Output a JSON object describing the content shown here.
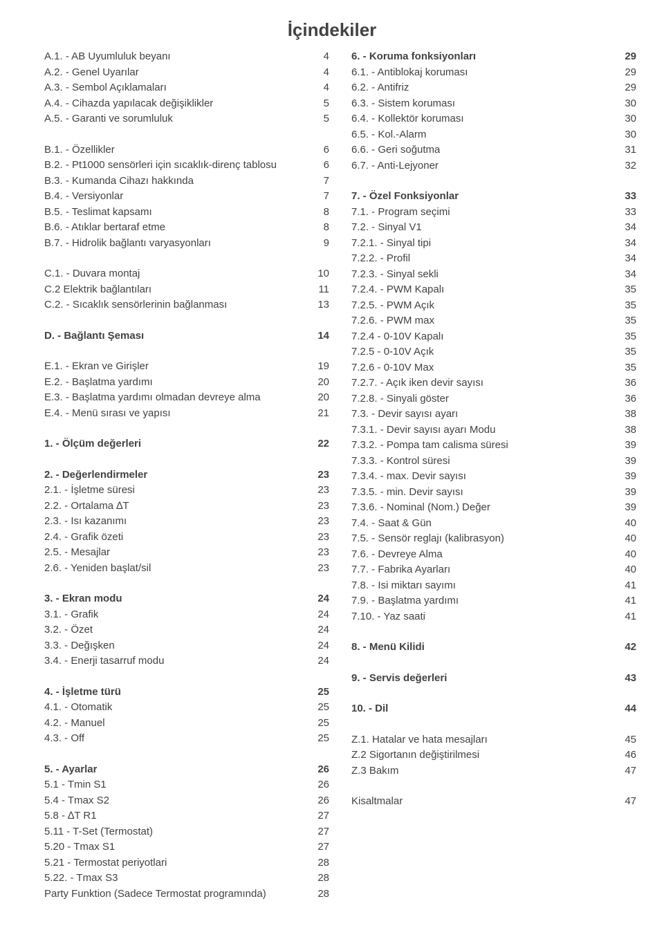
{
  "title": "İçindekiler",
  "left": [
    {
      "label": "A.1. - AB Uyumluluk beyanı",
      "page": "4"
    },
    {
      "label": "A.2. - Genel Uyarılar",
      "page": "4"
    },
    {
      "label": "A.3. - Sembol Açıklamaları",
      "page": "4"
    },
    {
      "label": "A.4. - Cihazda yapılacak değişiklikler",
      "page": "5"
    },
    {
      "label": "A.5. - Garanti ve sorumluluk",
      "page": "5"
    },
    {
      "gap": true
    },
    {
      "label": "B.1. - Özellikler",
      "page": "6"
    },
    {
      "label": "B.2. - Pt1000 sensörleri için sıcaklık-direnç tablosu",
      "page": "6"
    },
    {
      "label": "B.3. - Kumanda Cihazı hakkında",
      "page": "7"
    },
    {
      "label": "B.4. - Versiyonlar",
      "page": "7"
    },
    {
      "label": "B.5. - Teslimat kapsamı",
      "page": "8"
    },
    {
      "label": "B.6. - Atıklar bertaraf etme",
      "page": "8"
    },
    {
      "label": "B.7. - Hidrolik bağlantı varyasyonları",
      "page": "9"
    },
    {
      "gap": true
    },
    {
      "label": "C.1. - Duvara montaj",
      "page": "10"
    },
    {
      "label": "C.2   Elektrik bağlantıları",
      "page": "11"
    },
    {
      "label": "C.2. - Sıcaklık sensörlerinin bağlanması",
      "page": "13"
    },
    {
      "gap": true
    },
    {
      "label": "D. - Bağlantı Şeması",
      "page": "14",
      "bold": true
    },
    {
      "gap": true
    },
    {
      "label": "E.1. - Ekran ve Girişler",
      "page": "19"
    },
    {
      "label": "E.2. - Başlatma yardımı",
      "page": "20"
    },
    {
      "label": "E.3. - Başlatma yardımı olmadan devreye alma",
      "page": "20"
    },
    {
      "label": "E.4. - Menü sırası ve yapısı",
      "page": "21"
    },
    {
      "gap": true
    },
    {
      "label": "1. - Ölçüm değerleri",
      "page": "22",
      "bold": true
    },
    {
      "gap": true
    },
    {
      "label": "2. - Değerlendirmeler",
      "page": "23",
      "bold": true
    },
    {
      "label": "2.1. - İşletme süresi",
      "page": "23"
    },
    {
      "label": "2.2. - Ortalama ∆T",
      "page": "23"
    },
    {
      "label": "2.3. - Isı kazanımı",
      "page": "23"
    },
    {
      "label": "2.4. - Grafik özeti",
      "page": "23"
    },
    {
      "label": "2.5. - Mesajlar",
      "page": "23"
    },
    {
      "label": "2.6. - Yeniden başlat/sil",
      "page": "23"
    },
    {
      "gap": true
    },
    {
      "label": "3. - Ekran modu",
      "page": "24",
      "bold": true
    },
    {
      "label": "3.1. - Grafik",
      "page": "24"
    },
    {
      "label": "3.2. - Özet",
      "page": "24"
    },
    {
      "label": "3.3. - Değışken",
      "page": "24"
    },
    {
      "label": "3.4. - Enerji tasarruf modu",
      "page": "24"
    },
    {
      "gap": true
    },
    {
      "label": "4. - İşletme türü",
      "page": "25",
      "bold": true
    },
    {
      "label": "4.1. - Otomatik",
      "page": "25"
    },
    {
      "label": "4.2. - Manuel",
      "page": "25"
    },
    {
      "label": "4.3. - Off",
      "page": "25"
    },
    {
      "gap": true
    },
    {
      "label": "5. - Ayarlar",
      "page": "26",
      "bold": true
    },
    {
      "label": "5.1 - Tmin S1",
      "page": "26"
    },
    {
      "label": "5.4 - Tmax S2",
      "page": "26"
    },
    {
      "label": "5.8 - ∆T R1",
      "page": "27"
    },
    {
      "label": "5.11 - T-Set (Termostat)",
      "page": "27"
    },
    {
      "label": "5.20 - Tmax S1",
      "page": "27"
    },
    {
      "label": "5.21 - Termostat periyotlari",
      "page": "28"
    },
    {
      "label": "5.22. - Tmax S3",
      "page": "28"
    },
    {
      "label": "Party Funktion (Sadece Termostat programında)",
      "page": "28"
    }
  ],
  "right": [
    {
      "label": "6. - Koruma fonksiyonları",
      "page": "29",
      "bold": true
    },
    {
      "label": "6.1. - Antiblokaj koruması",
      "page": "29"
    },
    {
      "label": "6.2. - Antifriz",
      "page": "29"
    },
    {
      "label": "6.3. - Sistem koruması",
      "page": "30"
    },
    {
      "label": "6.4. - Kollektör koruması",
      "page": "30"
    },
    {
      "label": "6.5. - Kol.-Alarm",
      "page": "30"
    },
    {
      "label": "6.6. - Geri soğutma",
      "page": "31"
    },
    {
      "label": "6.7. - Anti-Lejyoner",
      "page": "32"
    },
    {
      "gap": true
    },
    {
      "label": "7. - Özel Fonksiyonlar",
      "page": "33",
      "bold": true
    },
    {
      "label": "7.1. - Program seçimi",
      "page": "33"
    },
    {
      "label": "7.2. - Sinyal V1",
      "page": "34"
    },
    {
      "label": "7.2.1. - Sinyal tipi",
      "page": "34"
    },
    {
      "label": "7.2.2. - Profil",
      "page": "34"
    },
    {
      "label": "7.2.3. - Sinyal sekli",
      "page": "34"
    },
    {
      "label": "7.2.4. - PWM Kapalı",
      "page": "35"
    },
    {
      "label": "7.2.5. - PWM Açık",
      "page": "35"
    },
    {
      "label": "7.2.6. - PWM max",
      "page": "35"
    },
    {
      "label": "7.2.4 - 0-10V Kapalı",
      "page": "35"
    },
    {
      "label": "7.2.5 - 0-10V Açık",
      "page": "35"
    },
    {
      "label": "7.2.6 - 0-10V Max",
      "page": "35"
    },
    {
      "label": "7.2.7. - Açık iken devir sayısı",
      "page": "36"
    },
    {
      "label": "7.2.8. - Sinyali göster",
      "page": "36"
    },
    {
      "label": "7.3. - Devir sayısı ayarı",
      "page": "38"
    },
    {
      "label": "7.3.1. - Devir sayısı ayarı Modu",
      "page": "38"
    },
    {
      "label": "7.3.2. - Pompa tam calisma süresi",
      "page": "39"
    },
    {
      "label": "7.3.3. - Kontrol süresi",
      "page": "39"
    },
    {
      "label": "7.3.4. - max. Devir sayısı",
      "page": "39"
    },
    {
      "label": "7.3.5. - min. Devir sayısı",
      "page": "39"
    },
    {
      "label": "7.3.6. - Nominal (Nom.) Değer",
      "page": "39"
    },
    {
      "label": "7.4. - Saat & Gün",
      "page": "40"
    },
    {
      "label": "7.5. - Sensör reglajı (kalibrasyon)",
      "page": "40"
    },
    {
      "label": "7.6. - Devreye Alma",
      "page": "40"
    },
    {
      "label": "7.7. - Fabrika Ayarları",
      "page": "40"
    },
    {
      "label": "7.8. - Isi miktarı sayımı",
      "page": "41"
    },
    {
      "label": "7.9. - Başlatma yardımı",
      "page": "41"
    },
    {
      "label": "7.10. - Yaz saati",
      "page": "41"
    },
    {
      "gap": true
    },
    {
      "label": "8. - Menü Kilidi",
      "page": "42",
      "bold": true
    },
    {
      "gap": true
    },
    {
      "label": "9. - Servis değerleri",
      "page": "43",
      "bold": true
    },
    {
      "gap": true
    },
    {
      "label": "10. - Dil",
      "page": "44",
      "bold": true
    },
    {
      "gap": true
    },
    {
      "label": "Z.1.   Hatalar ve hata mesajları",
      "page": "45"
    },
    {
      "label": "Z.2   Sigortanın değiştirilmesi",
      "page": "46"
    },
    {
      "label": "Z.3   Bakım",
      "page": "47"
    },
    {
      "gap": true
    },
    {
      "label": "Kisaltmalar",
      "page": "47"
    }
  ]
}
